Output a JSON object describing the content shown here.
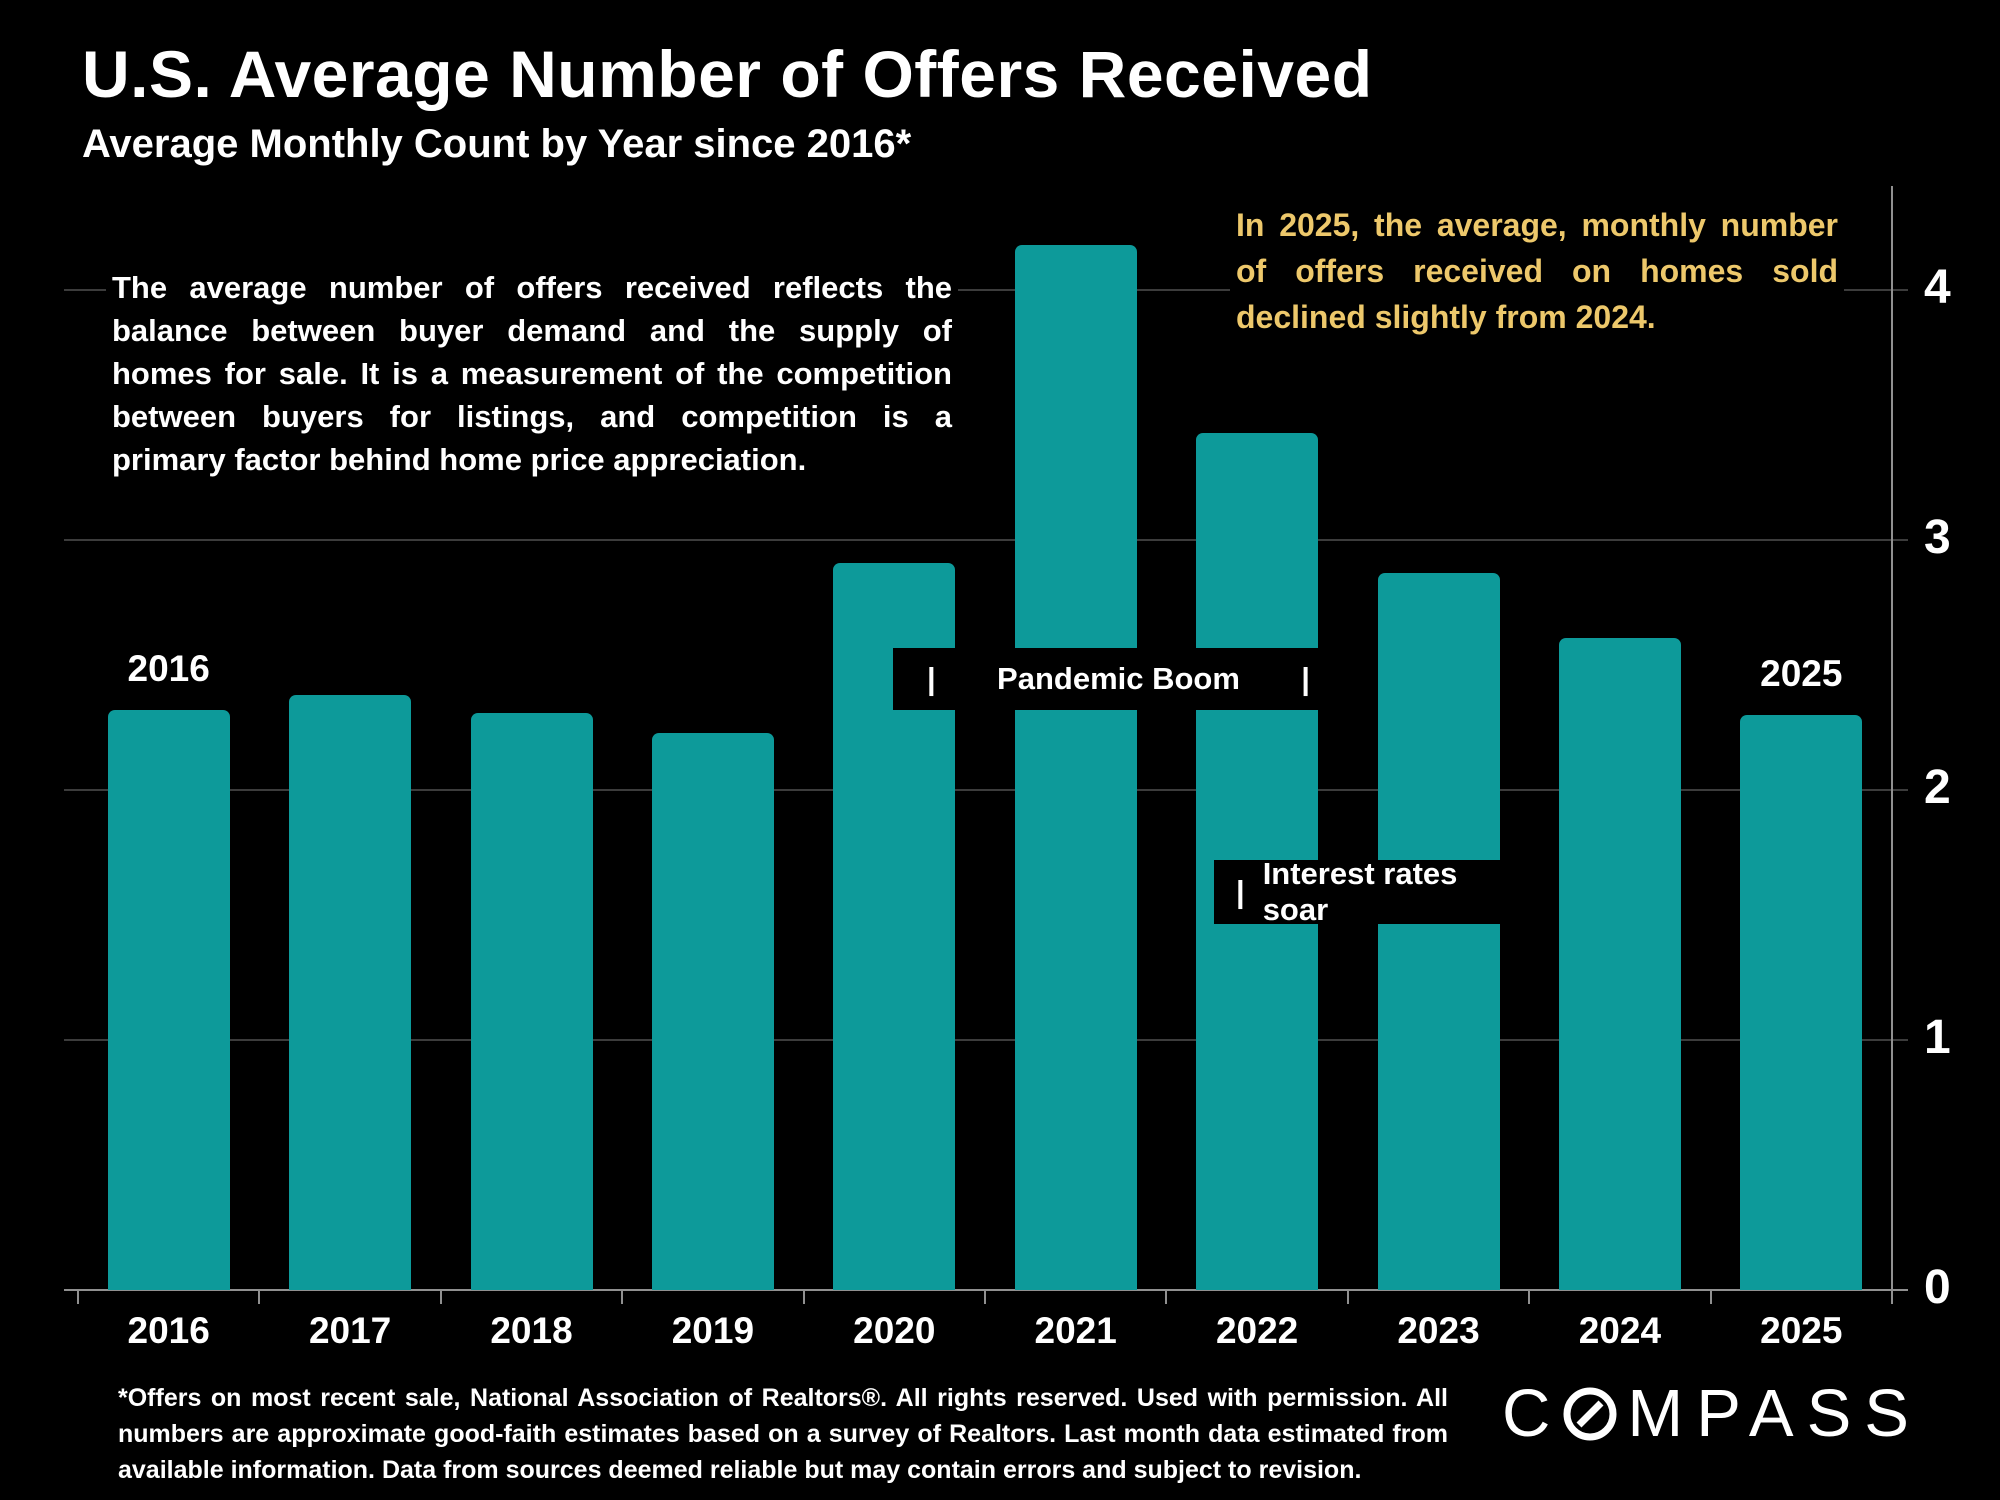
{
  "title": "U.S. Average Number of Offers Received",
  "subtitle": "Average Monthly Count by Year since 2016*",
  "description": "The average number of offers received reflects the balance between buyer demand and the supply of homes for sale. It is a measurement of the competition between buyers for listings, and competition is a primary factor behind home price appreciation.",
  "highlight": "In 2025, the average, monthly number of offers received on homes sold declined slightly from 2024.",
  "footnote": "*Offers on most recent sale, National Association of Realtors®. All rights reserved. Used with permission. All numbers are approximate good-faith estimates based on a survey of Realtors. Last month data estimated from available information. Data from sources deemed reliable but may contain errors and subject to revision.",
  "logo": {
    "text": "COMPASS",
    "prefix": "C",
    "suffix": "MPASS"
  },
  "colors": {
    "background": "#000000",
    "bar": "#0D9A9A",
    "text": "#FFFFFF",
    "highlight_text": "#EDC86B",
    "gridline": "#3C3C3C",
    "axis": "#909090"
  },
  "chart_data": {
    "type": "bar",
    "title": "U.S. Average Number of Offers Received",
    "subtitle": "Average Monthly Count by Year since 2016*",
    "categories": [
      "2016",
      "2017",
      "2018",
      "2019",
      "2020",
      "2021",
      "2022",
      "2023",
      "2024",
      "2025"
    ],
    "values": [
      2.32,
      2.38,
      2.31,
      2.23,
      2.91,
      4.18,
      3.43,
      2.87,
      2.61,
      2.3
    ],
    "xlabel": "",
    "ylabel": "",
    "y_ticks": [
      0,
      1,
      2,
      3,
      4
    ],
    "ylim": [
      0,
      4.42
    ],
    "grid": true,
    "axis_side": "right",
    "legend": "none",
    "annotations": {
      "pandemic_boom": {
        "left_pipe": "|",
        "text": "Pandemic Boom",
        "right_pipe": "|",
        "anchor_year": "2021"
      },
      "interest_rates_soar": {
        "pipe": "|",
        "text": "Interest rates soar",
        "anchor_years": "2022-2023"
      },
      "first_bar_label": {
        "category_index": 0,
        "text": "2016"
      },
      "last_bar_label": {
        "category_index": 9,
        "text": "2025"
      }
    }
  }
}
